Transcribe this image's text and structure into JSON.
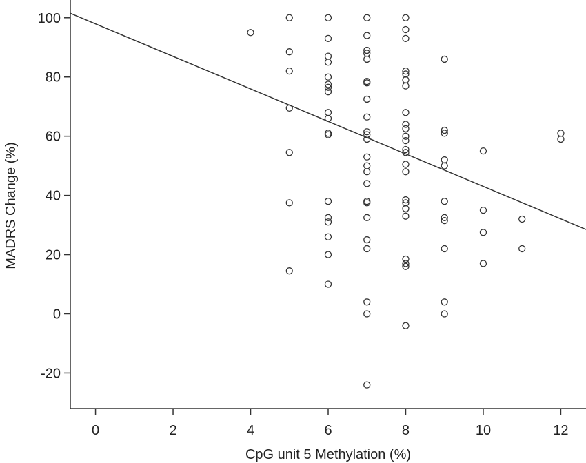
{
  "chart_data": {
    "type": "scatter",
    "title": "",
    "xlabel": "CpG unit 5 Methylation (%)",
    "ylabel": "MADRS Change (%)",
    "xlim": [
      -0.65,
      12.65
    ],
    "ylim": [
      -32,
      106
    ],
    "xticks": [
      0,
      2,
      4,
      6,
      8,
      10,
      12
    ],
    "yticks": [
      -20,
      0,
      20,
      40,
      60,
      80,
      100
    ],
    "grid": false,
    "legend": "none",
    "fit_line": {
      "x": [
        -0.65,
        12.65
      ],
      "y": [
        101.5,
        28.5
      ]
    },
    "points": [
      {
        "x": 4,
        "y": 95
      },
      {
        "x": 5,
        "y": 100
      },
      {
        "x": 5,
        "y": 88.5
      },
      {
        "x": 5,
        "y": 82
      },
      {
        "x": 5,
        "y": 69.5
      },
      {
        "x": 5,
        "y": 54.5
      },
      {
        "x": 5,
        "y": 37.5
      },
      {
        "x": 5,
        "y": 14.5
      },
      {
        "x": 6,
        "y": 100
      },
      {
        "x": 6,
        "y": 93
      },
      {
        "x": 6,
        "y": 87
      },
      {
        "x": 6,
        "y": 85
      },
      {
        "x": 6,
        "y": 80
      },
      {
        "x": 6,
        "y": 77.5
      },
      {
        "x": 6,
        "y": 76.5
      },
      {
        "x": 6,
        "y": 75
      },
      {
        "x": 6,
        "y": 68
      },
      {
        "x": 6,
        "y": 66
      },
      {
        "x": 6,
        "y": 61
      },
      {
        "x": 6,
        "y": 60.5
      },
      {
        "x": 6,
        "y": 38
      },
      {
        "x": 6,
        "y": 32.5
      },
      {
        "x": 6,
        "y": 31
      },
      {
        "x": 6,
        "y": 26
      },
      {
        "x": 6,
        "y": 20
      },
      {
        "x": 6,
        "y": 10
      },
      {
        "x": 7,
        "y": 100
      },
      {
        "x": 7,
        "y": 94
      },
      {
        "x": 7,
        "y": 89
      },
      {
        "x": 7,
        "y": 88
      },
      {
        "x": 7,
        "y": 86
      },
      {
        "x": 7,
        "y": 78.5
      },
      {
        "x": 7,
        "y": 78
      },
      {
        "x": 7,
        "y": 72.5
      },
      {
        "x": 7,
        "y": 66.5
      },
      {
        "x": 7,
        "y": 61.5
      },
      {
        "x": 7,
        "y": 60.5
      },
      {
        "x": 7,
        "y": 59
      },
      {
        "x": 7,
        "y": 53
      },
      {
        "x": 7,
        "y": 50
      },
      {
        "x": 7,
        "y": 48
      },
      {
        "x": 7,
        "y": 44
      },
      {
        "x": 7,
        "y": 38
      },
      {
        "x": 7,
        "y": 37.5
      },
      {
        "x": 7,
        "y": 32.5
      },
      {
        "x": 7,
        "y": 25
      },
      {
        "x": 7,
        "y": 22
      },
      {
        "x": 7,
        "y": 4
      },
      {
        "x": 7,
        "y": 0
      },
      {
        "x": 7,
        "y": -24
      },
      {
        "x": 8,
        "y": 100
      },
      {
        "x": 8,
        "y": 96
      },
      {
        "x": 8,
        "y": 93
      },
      {
        "x": 8,
        "y": 82
      },
      {
        "x": 8,
        "y": 81
      },
      {
        "x": 8,
        "y": 79
      },
      {
        "x": 8,
        "y": 77
      },
      {
        "x": 8,
        "y": 68
      },
      {
        "x": 8,
        "y": 64
      },
      {
        "x": 8,
        "y": 62.5
      },
      {
        "x": 8,
        "y": 60
      },
      {
        "x": 8,
        "y": 58.5
      },
      {
        "x": 8,
        "y": 55.5
      },
      {
        "x": 8,
        "y": 54.5
      },
      {
        "x": 8,
        "y": 50.5
      },
      {
        "x": 8,
        "y": 48
      },
      {
        "x": 8,
        "y": 38.5
      },
      {
        "x": 8,
        "y": 37.5
      },
      {
        "x": 8,
        "y": 35.5
      },
      {
        "x": 8,
        "y": 33
      },
      {
        "x": 8,
        "y": 18.5
      },
      {
        "x": 8,
        "y": 17
      },
      {
        "x": 8,
        "y": 16
      },
      {
        "x": 8,
        "y": -4
      },
      {
        "x": 9,
        "y": 86
      },
      {
        "x": 9,
        "y": 62
      },
      {
        "x": 9,
        "y": 61
      },
      {
        "x": 9,
        "y": 52
      },
      {
        "x": 9,
        "y": 50
      },
      {
        "x": 9,
        "y": 38
      },
      {
        "x": 9,
        "y": 32.5
      },
      {
        "x": 9,
        "y": 31.5
      },
      {
        "x": 9,
        "y": 22
      },
      {
        "x": 9,
        "y": 4
      },
      {
        "x": 9,
        "y": 0
      },
      {
        "x": 10,
        "y": 55
      },
      {
        "x": 10,
        "y": 35
      },
      {
        "x": 10,
        "y": 27.5
      },
      {
        "x": 10,
        "y": 17
      },
      {
        "x": 11,
        "y": 32
      },
      {
        "x": 11,
        "y": 22
      },
      {
        "x": 12,
        "y": 61
      },
      {
        "x": 12,
        "y": 59
      }
    ]
  }
}
